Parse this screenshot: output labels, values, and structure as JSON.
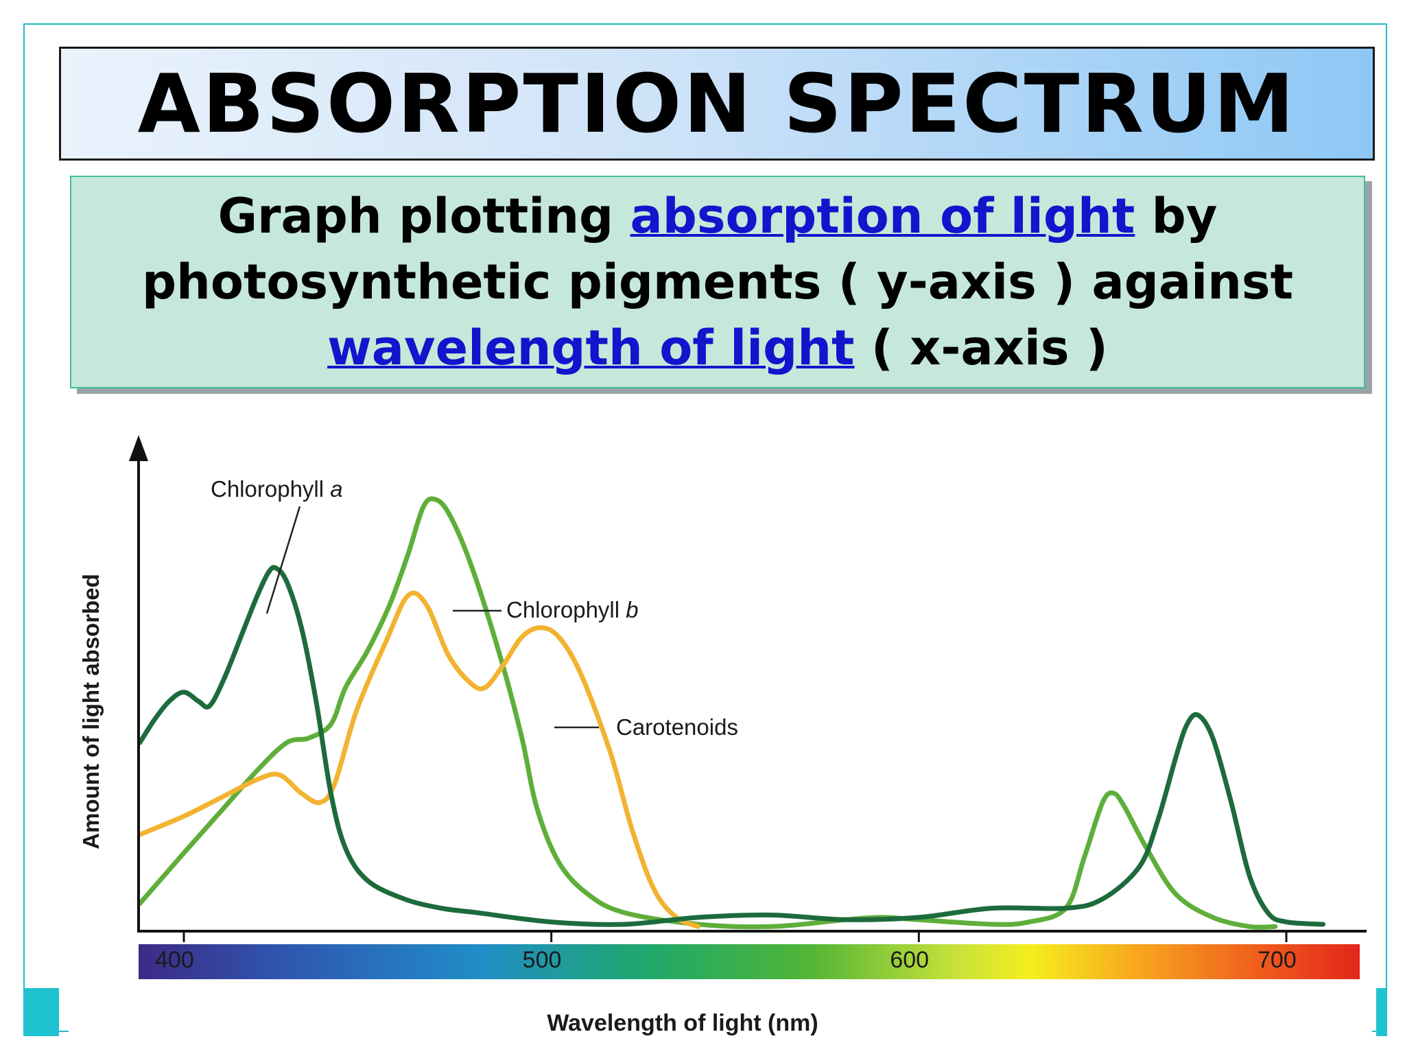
{
  "slide": {
    "title": "ABSORPTION SPECTRUM",
    "definition": {
      "line1_pre": "Graph plotting ",
      "line1_link": "absorption of light",
      "line1_post": " by",
      "line2": "photosynthetic pigments ( y-axis ) against",
      "line3_link": "wavelength of light",
      "line3_post": " ( x-axis )"
    },
    "colors": {
      "frame": "#1fbcc4",
      "title_gradient_end": "#8ec8f5",
      "definition_bg": "#c6e8da",
      "link": "#1414cc"
    }
  },
  "chart_data": {
    "type": "line",
    "title": "",
    "xlabel": "Wavelength of light (nm)",
    "ylabel": "Amount of light absorbed",
    "xlim": [
      388,
      720
    ],
    "ylim": [
      0,
      1
    ],
    "y_ticks_shown": false,
    "grid": false,
    "x_ticks": [
      "400",
      "500",
      "600",
      "700"
    ],
    "x_tick_values": [
      400,
      500,
      600,
      700
    ],
    "axis_color_bar": "visible light spectrum (violet to red)",
    "series": [
      {
        "name": "Chlorophyll a",
        "color": "#1d6b3c",
        "points": [
          [
            388,
            0.41
          ],
          [
            392,
            0.46
          ],
          [
            396,
            0.5
          ],
          [
            400,
            0.52
          ],
          [
            404,
            0.5
          ],
          [
            407,
            0.49
          ],
          [
            411,
            0.55
          ],
          [
            416,
            0.65
          ],
          [
            420,
            0.73
          ],
          [
            423,
            0.78
          ],
          [
            425,
            0.79
          ],
          [
            428,
            0.76
          ],
          [
            432,
            0.66
          ],
          [
            436,
            0.5
          ],
          [
            440,
            0.3
          ],
          [
            444,
            0.18
          ],
          [
            450,
            0.11
          ],
          [
            460,
            0.07
          ],
          [
            470,
            0.05
          ],
          [
            480,
            0.04
          ],
          [
            500,
            0.02
          ],
          [
            520,
            0.015
          ],
          [
            540,
            0.03
          ],
          [
            560,
            0.035
          ],
          [
            580,
            0.025
          ],
          [
            600,
            0.03
          ],
          [
            620,
            0.05
          ],
          [
            640,
            0.05
          ],
          [
            650,
            0.07
          ],
          [
            660,
            0.14
          ],
          [
            665,
            0.24
          ],
          [
            670,
            0.38
          ],
          [
            673,
            0.45
          ],
          [
            676,
            0.47
          ],
          [
            680,
            0.42
          ],
          [
            685,
            0.28
          ],
          [
            690,
            0.12
          ],
          [
            695,
            0.04
          ],
          [
            700,
            0.02
          ],
          [
            710,
            0.015
          ]
        ]
      },
      {
        "name": "Chlorophyll b",
        "color": "#5fae3a",
        "points": [
          [
            388,
            0.06
          ],
          [
            400,
            0.17
          ],
          [
            410,
            0.26
          ],
          [
            420,
            0.35
          ],
          [
            428,
            0.41
          ],
          [
            434,
            0.42
          ],
          [
            440,
            0.45
          ],
          [
            444,
            0.53
          ],
          [
            450,
            0.61
          ],
          [
            456,
            0.71
          ],
          [
            461,
            0.82
          ],
          [
            465,
            0.92
          ],
          [
            468,
            0.94
          ],
          [
            472,
            0.91
          ],
          [
            478,
            0.8
          ],
          [
            486,
            0.6
          ],
          [
            492,
            0.42
          ],
          [
            496,
            0.27
          ],
          [
            502,
            0.15
          ],
          [
            510,
            0.08
          ],
          [
            520,
            0.04
          ],
          [
            540,
            0.015
          ],
          [
            560,
            0.01
          ],
          [
            580,
            0.025
          ],
          [
            590,
            0.03
          ],
          [
            600,
            0.025
          ],
          [
            620,
            0.015
          ],
          [
            630,
            0.02
          ],
          [
            640,
            0.05
          ],
          [
            645,
            0.16
          ],
          [
            650,
            0.28
          ],
          [
            653,
            0.3
          ],
          [
            656,
            0.27
          ],
          [
            662,
            0.18
          ],
          [
            670,
            0.08
          ],
          [
            680,
            0.03
          ],
          [
            690,
            0.01
          ],
          [
            697,
            0.01
          ]
        ]
      },
      {
        "name": "Carotenoids",
        "color": "#f2b331",
        "points": [
          [
            388,
            0.21
          ],
          [
            400,
            0.25
          ],
          [
            410,
            0.29
          ],
          [
            420,
            0.33
          ],
          [
            426,
            0.34
          ],
          [
            432,
            0.3
          ],
          [
            437,
            0.28
          ],
          [
            441,
            0.32
          ],
          [
            447,
            0.48
          ],
          [
            455,
            0.63
          ],
          [
            461,
            0.73
          ],
          [
            466,
            0.71
          ],
          [
            472,
            0.6
          ],
          [
            478,
            0.54
          ],
          [
            482,
            0.53
          ],
          [
            487,
            0.58
          ],
          [
            492,
            0.64
          ],
          [
            497,
            0.66
          ],
          [
            502,
            0.64
          ],
          [
            508,
            0.56
          ],
          [
            516,
            0.39
          ],
          [
            522,
            0.22
          ],
          [
            528,
            0.09
          ],
          [
            534,
            0.03
          ],
          [
            540,
            0.01
          ]
        ]
      }
    ],
    "annotations": [
      {
        "label": "Chlorophyll ",
        "label_italic": "a",
        "series": "Chlorophyll a"
      },
      {
        "label": "Chlorophyll ",
        "label_italic": "b",
        "series": "Chlorophyll b"
      },
      {
        "label": "Carotenoids",
        "label_italic": "",
        "series": "Carotenoids"
      }
    ]
  }
}
